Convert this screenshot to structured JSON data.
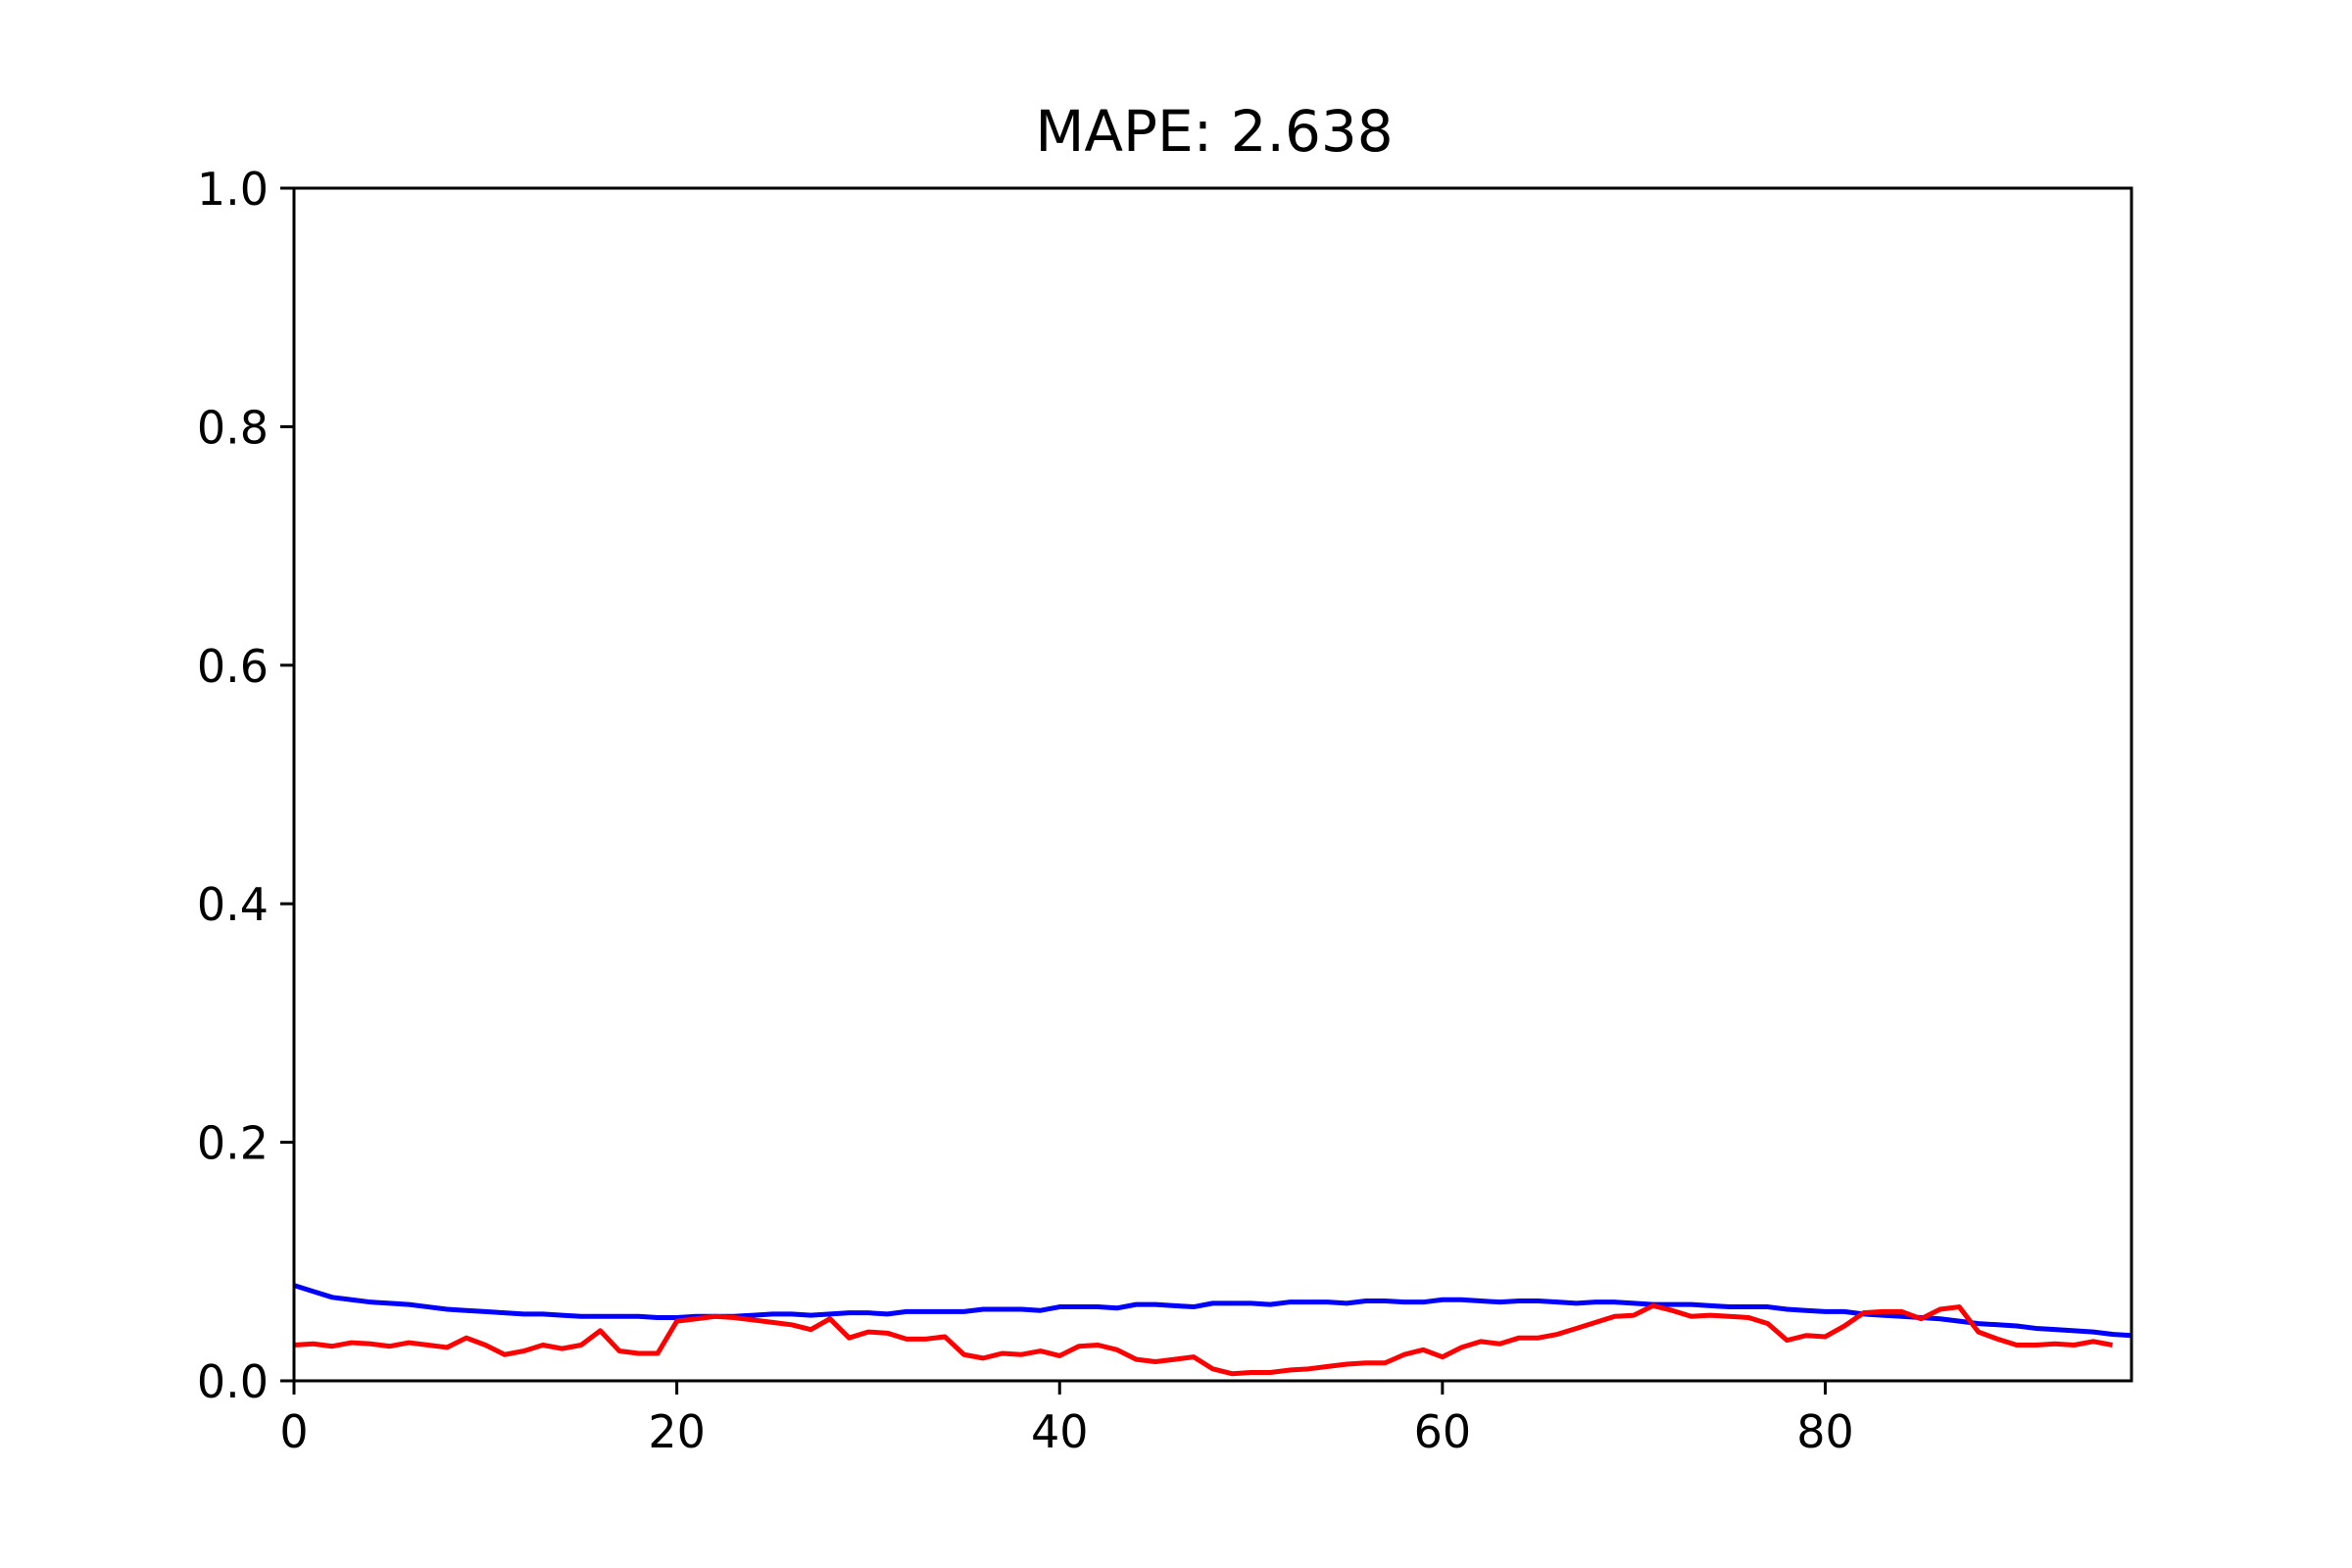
{
  "chart_data": {
    "type": "line",
    "title": "MAPE: 2.638",
    "xlabel": "",
    "ylabel": "",
    "xlim": [
      0,
      96
    ],
    "ylim": [
      0,
      1.0
    ],
    "xticks": [
      0,
      20,
      40,
      60,
      80
    ],
    "yticks": [
      0.0,
      0.2,
      0.4,
      0.6,
      0.8,
      1.0
    ],
    "xtick_labels": [
      "0",
      "20",
      "40",
      "60",
      "80"
    ],
    "ytick_labels": [
      "0.0",
      "0.2",
      "0.4",
      "0.6",
      "0.8",
      "1.0"
    ],
    "grid": false,
    "legend": "none",
    "series": [
      {
        "color": "#0000ff",
        "y": [
          0.08,
          0.075,
          0.07,
          0.068,
          0.066,
          0.065,
          0.064,
          0.062,
          0.06,
          0.059,
          0.058,
          0.057,
          0.056,
          0.056,
          0.055,
          0.054,
          0.054,
          0.054,
          0.054,
          0.053,
          0.053,
          0.054,
          0.054,
          0.054,
          0.055,
          0.056,
          0.056,
          0.055,
          0.056,
          0.057,
          0.057,
          0.056,
          0.058,
          0.058,
          0.058,
          0.058,
          0.06,
          0.06,
          0.06,
          0.059,
          0.062,
          0.062,
          0.062,
          0.061,
          0.064,
          0.064,
          0.063,
          0.062,
          0.065,
          0.065,
          0.065,
          0.064,
          0.066,
          0.066,
          0.066,
          0.065,
          0.067,
          0.067,
          0.066,
          0.066,
          0.068,
          0.068,
          0.067,
          0.066,
          0.067,
          0.067,
          0.066,
          0.065,
          0.066,
          0.066,
          0.065,
          0.064,
          0.064,
          0.064,
          0.063,
          0.062,
          0.062,
          0.062,
          0.06,
          0.059,
          0.058,
          0.058,
          0.056,
          0.055,
          0.054,
          0.053,
          0.052,
          0.05,
          0.048,
          0.047,
          0.046,
          0.044,
          0.043,
          0.042,
          0.041,
          0.039,
          0.038
        ]
      },
      {
        "color": "#ff0000",
        "y": [
          0.03,
          0.031,
          0.029,
          0.032,
          0.031,
          0.029,
          0.032,
          0.03,
          0.028,
          0.036,
          0.03,
          0.022,
          0.025,
          0.03,
          0.027,
          0.03,
          0.042,
          0.025,
          0.023,
          0.023,
          0.05,
          0.052,
          0.054,
          0.053,
          0.051,
          0.049,
          0.047,
          0.043,
          0.052,
          0.036,
          0.041,
          0.04,
          0.035,
          0.035,
          0.037,
          0.022,
          0.019,
          0.023,
          0.022,
          0.025,
          0.021,
          0.029,
          0.03,
          0.026,
          0.018,
          0.016,
          0.018,
          0.02,
          0.01,
          0.006,
          0.007,
          0.007,
          0.009,
          0.01,
          0.012,
          0.014,
          0.015,
          0.015,
          0.022,
          0.026,
          0.02,
          0.028,
          0.033,
          0.031,
          0.036,
          0.036,
          0.039,
          0.044,
          0.049,
          0.054,
          0.055,
          0.063,
          0.059,
          0.054,
          0.055,
          0.054,
          0.053,
          0.048,
          0.034,
          0.038,
          0.037,
          0.046,
          0.057,
          0.058,
          0.058,
          0.052,
          0.06,
          0.062,
          0.041,
          0.035,
          0.03,
          0.03,
          0.031,
          0.03,
          0.033,
          0.03
        ]
      }
    ]
  }
}
